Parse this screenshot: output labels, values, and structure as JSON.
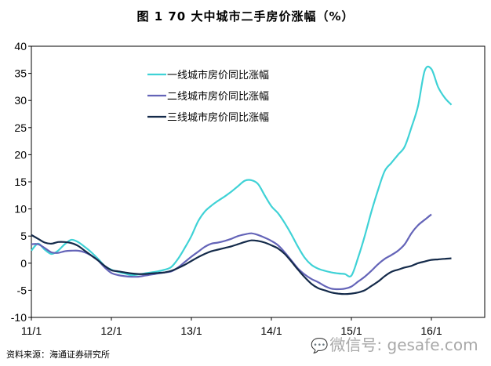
{
  "title": "图 1   70 大中城市二手房价涨幅（%）",
  "source": "资料来源：海通证券研究所",
  "watermark": {
    "icon": "wechat-icon",
    "text": "微信号: gesafe.com"
  },
  "chart_data": {
    "type": "line",
    "title": "图 1   70 大中城市二手房价涨幅（%）",
    "xlabel": "",
    "ylabel": "",
    "ylim": [
      -10,
      40
    ],
    "yticks": [
      -10,
      -5,
      0,
      5,
      10,
      15,
      20,
      25,
      30,
      35,
      40
    ],
    "xlim": [
      0,
      68
    ],
    "xtick_positions": [
      0,
      12,
      24,
      36,
      48,
      60
    ],
    "xtick_labels": [
      "11/1",
      "12/1",
      "13/1",
      "14/1",
      "15/1",
      "16/1"
    ],
    "grid": false,
    "legend": "top-left inside plot",
    "series": [
      {
        "name": "一线城市房价同比涨幅",
        "color": "#3fd2d6",
        "values": [
          2.3,
          3.6,
          2.5,
          1.7,
          2.3,
          3.5,
          4.3,
          3.9,
          3.0,
          2.0,
          0.8,
          -0.5,
          -1.2,
          -1.6,
          -1.9,
          -2.2,
          -2.1,
          -1.9,
          -1.7,
          -1.5,
          -1.2,
          -0.7,
          0.8,
          2.8,
          5.0,
          7.7,
          9.5,
          10.6,
          11.5,
          12.3,
          13.2,
          14.2,
          15.2,
          15.3,
          14.6,
          12.5,
          10.5,
          9.2,
          7.4,
          5.3,
          3.0,
          1.0,
          -0.3,
          -1.0,
          -1.4,
          -1.7,
          -1.9,
          -2.0,
          -2.3,
          1.0,
          5.0,
          9.5,
          13.5,
          17.0,
          18.5,
          20.0,
          21.5,
          25.0,
          29.0,
          35.5,
          35.8,
          32.5,
          30.5,
          29.2
        ]
      },
      {
        "name": "二线城市房价同比涨幅",
        "color": "#6464b8",
        "values": [
          3.5,
          3.5,
          2.8,
          2.0,
          1.9,
          2.2,
          2.3,
          2.3,
          2.0,
          1.4,
          0.5,
          -0.8,
          -1.8,
          -2.2,
          -2.4,
          -2.5,
          -2.5,
          -2.3,
          -2.1,
          -1.9,
          -1.7,
          -1.5,
          -0.8,
          0.2,
          1.2,
          2.1,
          3.0,
          3.6,
          3.8,
          4.1,
          4.5,
          5.0,
          5.3,
          5.5,
          5.2,
          4.7,
          4.1,
          3.3,
          2.0,
          0.5,
          -1.0,
          -2.1,
          -2.9,
          -3.5,
          -4.2,
          -4.7,
          -4.8,
          -4.7,
          -4.3,
          -3.4,
          -2.5,
          -1.4,
          -0.2,
          0.8,
          1.5,
          2.3,
          3.5,
          5.5,
          7.0,
          8.0,
          9.0
        ]
      },
      {
        "name": "三线城市房价同比涨幅",
        "color": "#142a4a",
        "values": [
          5.2,
          4.5,
          3.8,
          3.6,
          3.9,
          3.9,
          3.7,
          3.2,
          2.3,
          1.4,
          0.5,
          -0.5,
          -1.3,
          -1.5,
          -1.7,
          -1.9,
          -2.0,
          -2.0,
          -1.9,
          -1.8,
          -1.7,
          -1.4,
          -0.9,
          -0.3,
          0.4,
          1.1,
          1.7,
          2.2,
          2.5,
          2.8,
          3.1,
          3.5,
          3.9,
          4.2,
          4.1,
          3.8,
          3.3,
          2.7,
          1.7,
          0.3,
          -1.2,
          -2.6,
          -3.8,
          -4.6,
          -5.0,
          -5.4,
          -5.6,
          -5.7,
          -5.6,
          -5.4,
          -5.0,
          -4.2,
          -3.4,
          -2.4,
          -1.6,
          -1.2,
          -0.8,
          -0.5,
          0,
          0.3,
          0.6,
          0.7,
          0.8,
          0.9
        ]
      }
    ]
  }
}
